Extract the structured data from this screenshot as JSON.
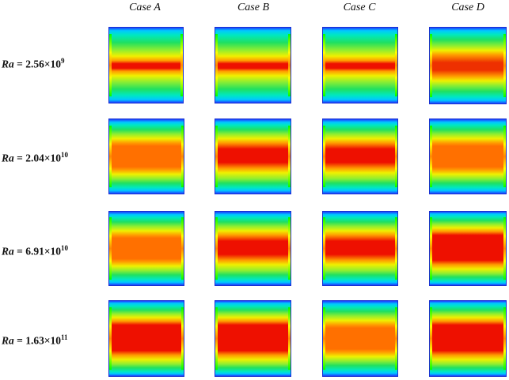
{
  "columns": [
    "Case A",
    "Case B",
    "Case C",
    "Case D"
  ],
  "rows": [
    {
      "prefix": "Ra",
      "eq": " = 2.56×10",
      "exp": "9"
    },
    {
      "prefix": "Ra",
      "eq": " = 2.04×10",
      "exp": "10"
    },
    {
      "prefix": "Ra",
      "eq": " = 6.91×10",
      "exp": "10"
    },
    {
      "prefix": "Ra",
      "eq": " = 1.63×10",
      "exp": "11"
    }
  ],
  "colormap": [
    "#1e3cff",
    "#00c8ff",
    "#20e060",
    "#f0f000",
    "#ff9a00",
    "#ee1000"
  ]
}
